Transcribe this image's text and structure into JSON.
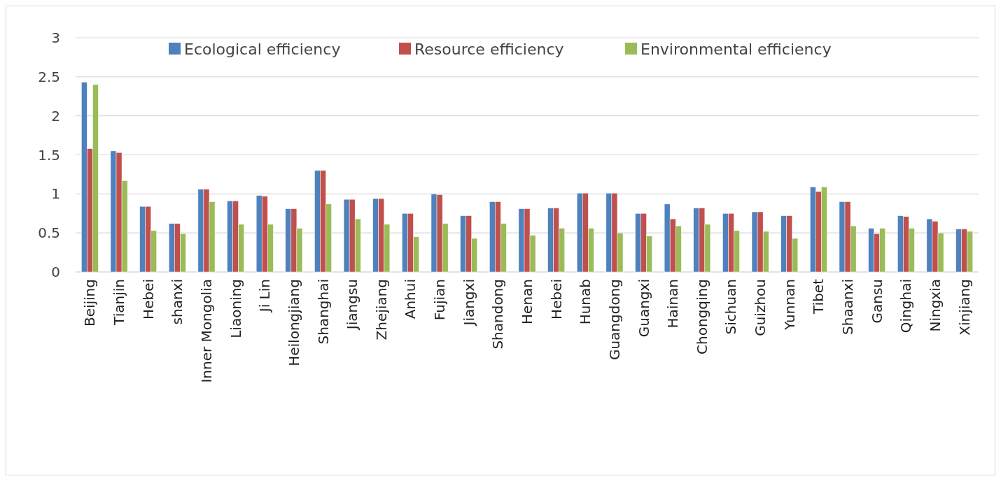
{
  "chart_data": {
    "type": "bar",
    "categories": [
      "Beijing",
      "Tianjin",
      "Hebei",
      "shanxi",
      "Inner Mongolia",
      "Liaoning",
      "Ji Lin",
      "Heilongjiang",
      "Shanghai",
      "Jiangsu",
      "Zhejiang",
      "Anhui",
      "Fujian",
      "Jiangxi",
      "Shandong",
      "Henan",
      "Hebei",
      "Hunab",
      "Guangdong",
      "Guangxi",
      "Hainan",
      "Chongqing",
      "Sichuan",
      "Guizhou",
      "Yunnan",
      "Tibet",
      "Shaanxi",
      "Gansu",
      "Qinghai",
      "Ningxia",
      "Xinjiang"
    ],
    "series": [
      {
        "name": "Ecological efficiency",
        "color": "#4f81bd",
        "values": [
          2.43,
          1.55,
          0.84,
          0.62,
          1.06,
          0.91,
          0.98,
          0.81,
          1.3,
          0.93,
          0.94,
          0.75,
          1.0,
          0.72,
          0.9,
          0.81,
          0.82,
          1.01,
          1.01,
          0.75,
          0.87,
          0.82,
          0.75,
          0.77,
          0.72,
          1.09,
          0.9,
          0.56,
          0.72,
          0.68,
          0.55
        ]
      },
      {
        "name": "Resource efficiency",
        "color": "#c0504d",
        "values": [
          1.58,
          1.53,
          0.84,
          0.62,
          1.06,
          0.91,
          0.97,
          0.81,
          1.3,
          0.93,
          0.94,
          0.75,
          0.99,
          0.72,
          0.9,
          0.81,
          0.82,
          1.01,
          1.01,
          0.75,
          0.68,
          0.82,
          0.75,
          0.77,
          0.72,
          1.03,
          0.9,
          0.49,
          0.71,
          0.65,
          0.55
        ]
      },
      {
        "name": "Environmental efficiency",
        "color": "#9bbb59",
        "values": [
          2.4,
          1.17,
          0.53,
          0.49,
          0.9,
          0.61,
          0.61,
          0.56,
          0.87,
          0.68,
          0.61,
          0.45,
          0.62,
          0.43,
          0.62,
          0.47,
          0.56,
          0.56,
          0.5,
          0.46,
          0.59,
          0.61,
          0.53,
          0.52,
          0.43,
          1.09,
          0.59,
          0.56,
          0.56,
          0.5,
          0.52
        ]
      }
    ],
    "ylim": [
      0,
      3
    ],
    "yticks": [
      0,
      0.5,
      1,
      1.5,
      2,
      2.5,
      3
    ],
    "grid": "y",
    "legend": "top"
  }
}
